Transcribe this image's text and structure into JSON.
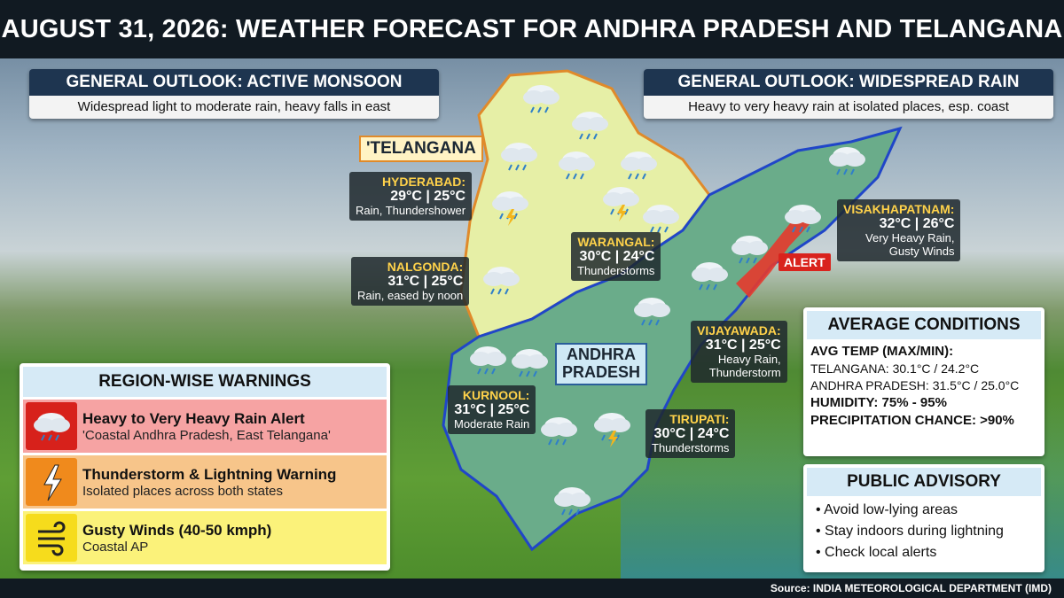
{
  "header": {
    "title": "AUGUST 31, 2026: WEATHER FORECAST FOR ANDHRA PRADESH AND TELANGANA"
  },
  "outlooks": [
    {
      "title": "GENERAL OUTLOOK: ACTIVE MONSOON",
      "text": "Widespread light to moderate rain, heavy falls in east"
    },
    {
      "title": "GENERAL OUTLOOK: WIDESPREAD RAIN",
      "text": "Heavy to very heavy rain at isolated places, esp. coast"
    }
  ],
  "map": {
    "states": [
      "'TELANGANA",
      "ANDHRA",
      "PRADESH"
    ],
    "alert": "ALERT",
    "cities": [
      {
        "name": "HYDERABAD:",
        "temp": "29°C | 25°C",
        "condition": [
          "Rain, Thundershower"
        ]
      },
      {
        "name": "NALGONDA:",
        "temp": "31°C | 25°C",
        "condition": [
          "Rain, eased by noon"
        ]
      },
      {
        "name": "WARANGAL:",
        "temp": "30°C | 24°C",
        "condition": [
          "Thunderstorms"
        ]
      },
      {
        "name": "VISAKHAPATNAM:",
        "temp": "32°C | 26°C",
        "condition": [
          "Very Heavy Rain,",
          "Gusty Winds"
        ]
      },
      {
        "name": "VIJAYAWADA:",
        "temp": "31°C | 25°C",
        "condition": [
          "Heavy Rain,",
          "Thunderstorm"
        ]
      },
      {
        "name": "KURNOOL:",
        "temp": "31°C | 25°C",
        "condition": [
          "Moderate Rain"
        ]
      },
      {
        "name": "TIRUPATI:",
        "temp": "30°C | 24°C",
        "condition": [
          "Thunderstorms"
        ]
      }
    ]
  },
  "warnings": {
    "title": "REGION-WISE WARNINGS",
    "items": [
      {
        "title": "Heavy to Very Heavy Rain Alert",
        "text": "'Coastal Andhra Pradesh, East Telangana'"
      },
      {
        "title": "Thunderstorm & Lightning Warning",
        "text": "Isolated places across both states"
      },
      {
        "title": "Gusty Winds (40-50 kmph)",
        "text": "Coastal AP"
      }
    ]
  },
  "average": {
    "title": "AVERAGE CONDITIONS",
    "lines": [
      "AVG TEMP (MAX/MIN):",
      "TELANGANA: 30.1°C / 24.2°C",
      "ANDHRA PRADESH: 31.5°C / 25.0°C",
      "HUMIDITY: 75% - 95%",
      "PRECIPITATION CHANCE: >90%"
    ]
  },
  "advisory": {
    "title": "PUBLIC ADVISORY",
    "items": [
      "• Avoid low-lying areas",
      "• Stay indoors during lightning",
      "• Check local alerts"
    ]
  },
  "footer": {
    "source": "Source: INDIA METEOROLOGICAL DEPARTMENT (IMD)"
  }
}
